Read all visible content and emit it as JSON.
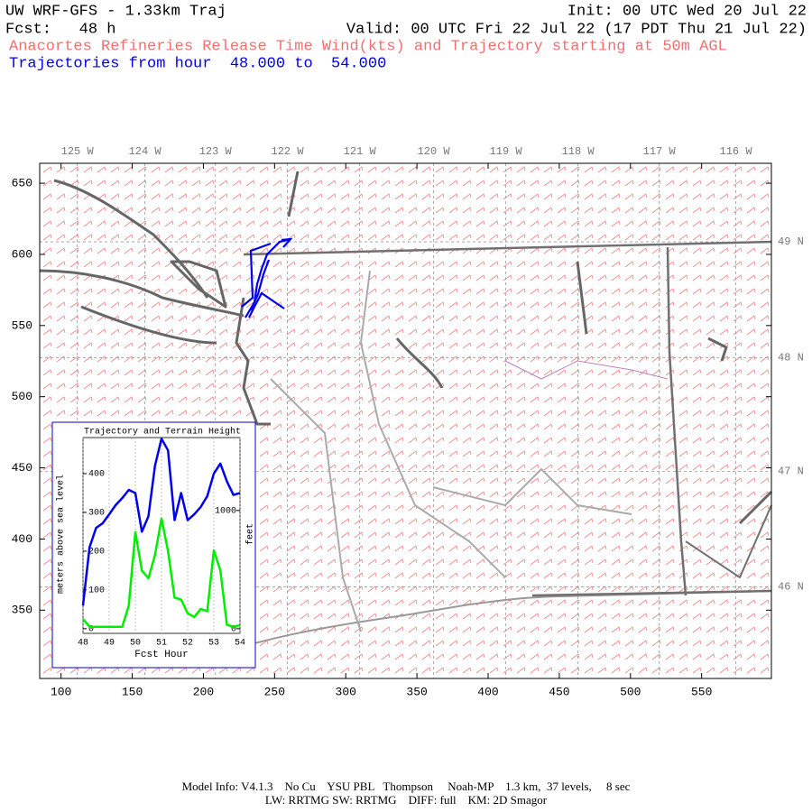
{
  "header": {
    "title": "UW WRF-GFS - 1.33km Traj",
    "init": "Init: 00 UTC Wed 20 Jul 22",
    "fcst": "Fcst:   48 h",
    "valid": "Valid: 00 UTC Fri 22 Jul 22 (17 PDT Thu 21 Jul 22)",
    "subtitle": "Anacortes Refineries Release Time Wind(kts) and Trajectory starting at 50m AGL",
    "trajectories": "Trajectories from hour  48.000 to  54.000"
  },
  "map": {
    "xlim": [
      85,
      599
    ],
    "ylim": [
      302,
      664
    ],
    "xticks": [
      100,
      150,
      200,
      250,
      300,
      350,
      400,
      450,
      500,
      550
    ],
    "yticks": [
      350,
      400,
      450,
      500,
      550,
      600,
      650
    ],
    "lon_labels": [
      {
        "value": 111.4,
        "label": "125 W"
      },
      {
        "value": 158.9,
        "label": "124 W"
      },
      {
        "value": 208.4,
        "label": "123 W"
      },
      {
        "value": 259,
        "label": "122 W"
      },
      {
        "value": 309.8,
        "label": "121 W"
      },
      {
        "value": 361.7,
        "label": "120 W"
      },
      {
        "value": 412.4,
        "label": "119 W"
      },
      {
        "value": 463.1,
        "label": "118 W"
      },
      {
        "value": 520.2,
        "label": "117 W"
      },
      {
        "value": 574,
        "label": "116 W"
      }
    ],
    "lat_labels": [
      {
        "value": 608.8,
        "label": "49 N"
      },
      {
        "value": 527.5,
        "label": "48 N"
      },
      {
        "value": 447.6,
        "label": "47 N"
      },
      {
        "value": 366.4,
        "label": "46 N"
      }
    ]
  },
  "chart_data": {
    "type": "line",
    "title": "Trajectory and Terrain Height",
    "x_label": "Fcst Hour",
    "y_label": "meters above sea level",
    "y2_label": "feet",
    "x": [
      48,
      48.25,
      48.5,
      48.75,
      49,
      49.25,
      49.5,
      49.75,
      50,
      50.25,
      50.5,
      50.75,
      51,
      51.25,
      51.5,
      51.75,
      52,
      52.25,
      52.5,
      52.75,
      53,
      53.25,
      53.5,
      53.75,
      54
    ],
    "series": [
      {
        "color": "#0000ee",
        "values": [
          60,
          210,
          260,
          272,
          295,
          319,
          337,
          358,
          350,
          250,
          290,
          420,
          490,
          460,
          280,
          350,
          280,
          295,
          314,
          342,
          400,
          426,
          380,
          345,
          350
        ]
      },
      {
        "color": "#00ee00",
        "values": [
          25,
          5,
          5,
          5,
          5,
          5,
          5,
          60,
          249,
          150,
          130,
          190,
          284,
          200,
          80,
          75,
          40,
          30,
          51,
          45,
          202,
          150,
          10,
          5,
          9
        ]
      }
    ],
    "xlim": [
      48,
      54
    ],
    "xticks": [
      48,
      49,
      50,
      51,
      52,
      53,
      54
    ],
    "ylim": [
      -12,
      493
    ],
    "yticks": [
      0,
      100,
      200,
      300,
      400
    ],
    "y2lim": [
      -39,
      1617
    ],
    "y2ticks": [
      0,
      1000
    ],
    "grid": true
  },
  "footer": {
    "line1": "Model Info: V4.1.3    No Cu    YSU PBL   Thompson     Noah-MP    1.3 km,  37 levels,     8 sec",
    "line2": "LW: RRTMG SW: RRTMG    DIFF: full    KM: 2D Smagor"
  }
}
